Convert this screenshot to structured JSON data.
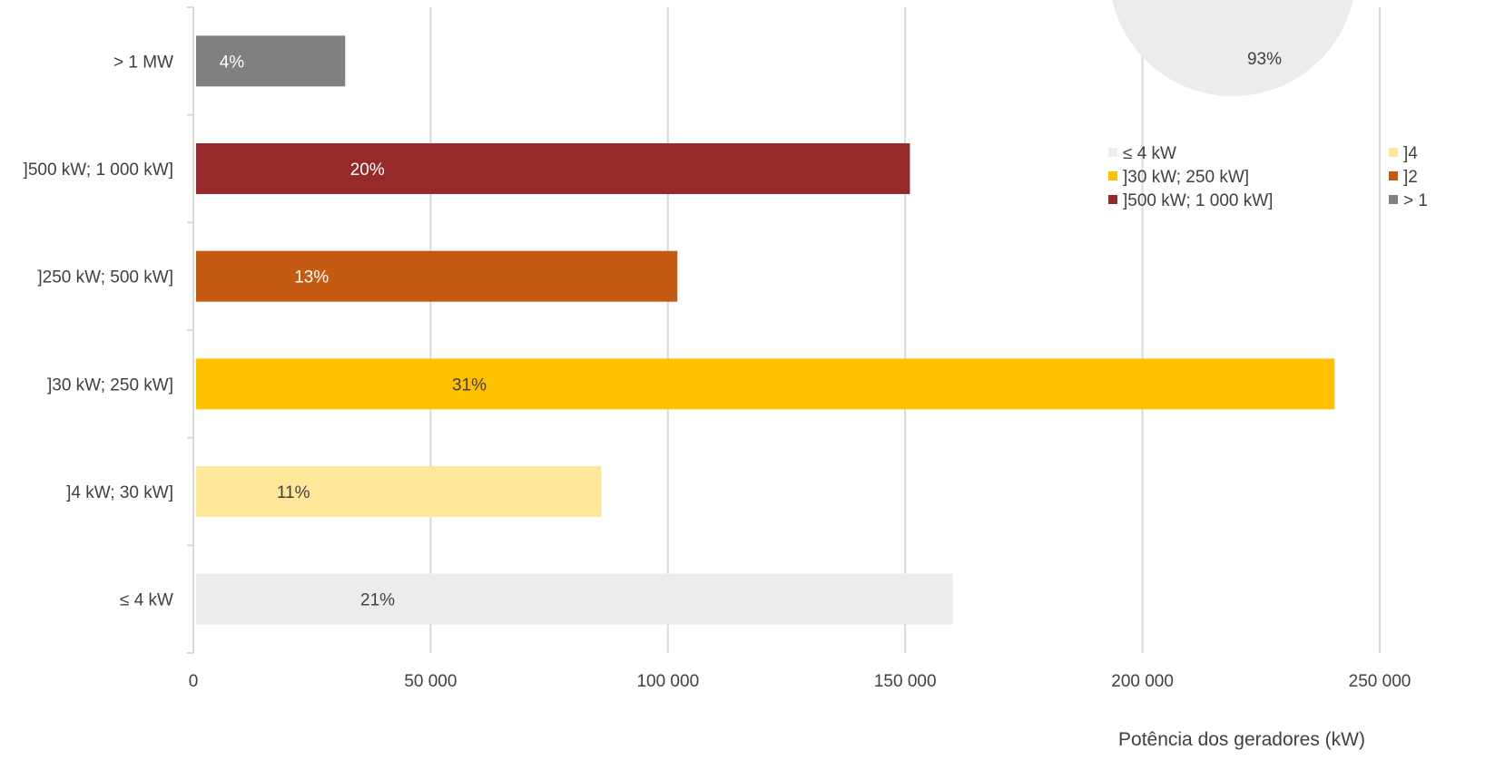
{
  "chart_data": {
    "type": "bar",
    "orientation": "horizontal",
    "categories": [
      "≤ 4 kW",
      "]4 kW; 30 kW]",
      "]30 kW; 250 kW]",
      "]250 kW; 500 kW]",
      "]500 kW; 1 000 kW]",
      "> 1 MW"
    ],
    "values": [
      160000,
      86000,
      240500,
      102000,
      151000,
      32000
    ],
    "data_labels": [
      "21%",
      "11%",
      "31%",
      "13%",
      "20%",
      "4%"
    ],
    "colors": [
      "#ececec",
      "#ffe699",
      "#ffc000",
      "#c55a11",
      "#962a2a",
      "#808080"
    ],
    "xlim": [
      0,
      250000
    ],
    "x_ticks": [
      0,
      50000,
      100000,
      150000,
      200000,
      250000
    ],
    "x_tick_labels": [
      "0",
      "50 000",
      "100 000",
      "150 000",
      "200 000",
      "250 000"
    ],
    "xlabel": "Potência dos geradores (kW)",
    "grid": "vertical",
    "legend": {
      "placement": "right",
      "entries": [
        {
          "label": "≤ 4 kW",
          "color": "#ececec"
        },
        {
          "label": "]30 kW; 250 kW]",
          "color": "#ffc000"
        },
        {
          "label": "]500 kW; 1 000 kW]",
          "color": "#962a2a"
        },
        {
          "label": "]4",
          "color": "#ffe699"
        },
        {
          "label": "]2",
          "color": "#c55a11"
        },
        {
          "label": "> 1",
          "color": "#808080"
        }
      ]
    },
    "inset_pie": {
      "label": "93%",
      "color": "#ececec"
    }
  }
}
